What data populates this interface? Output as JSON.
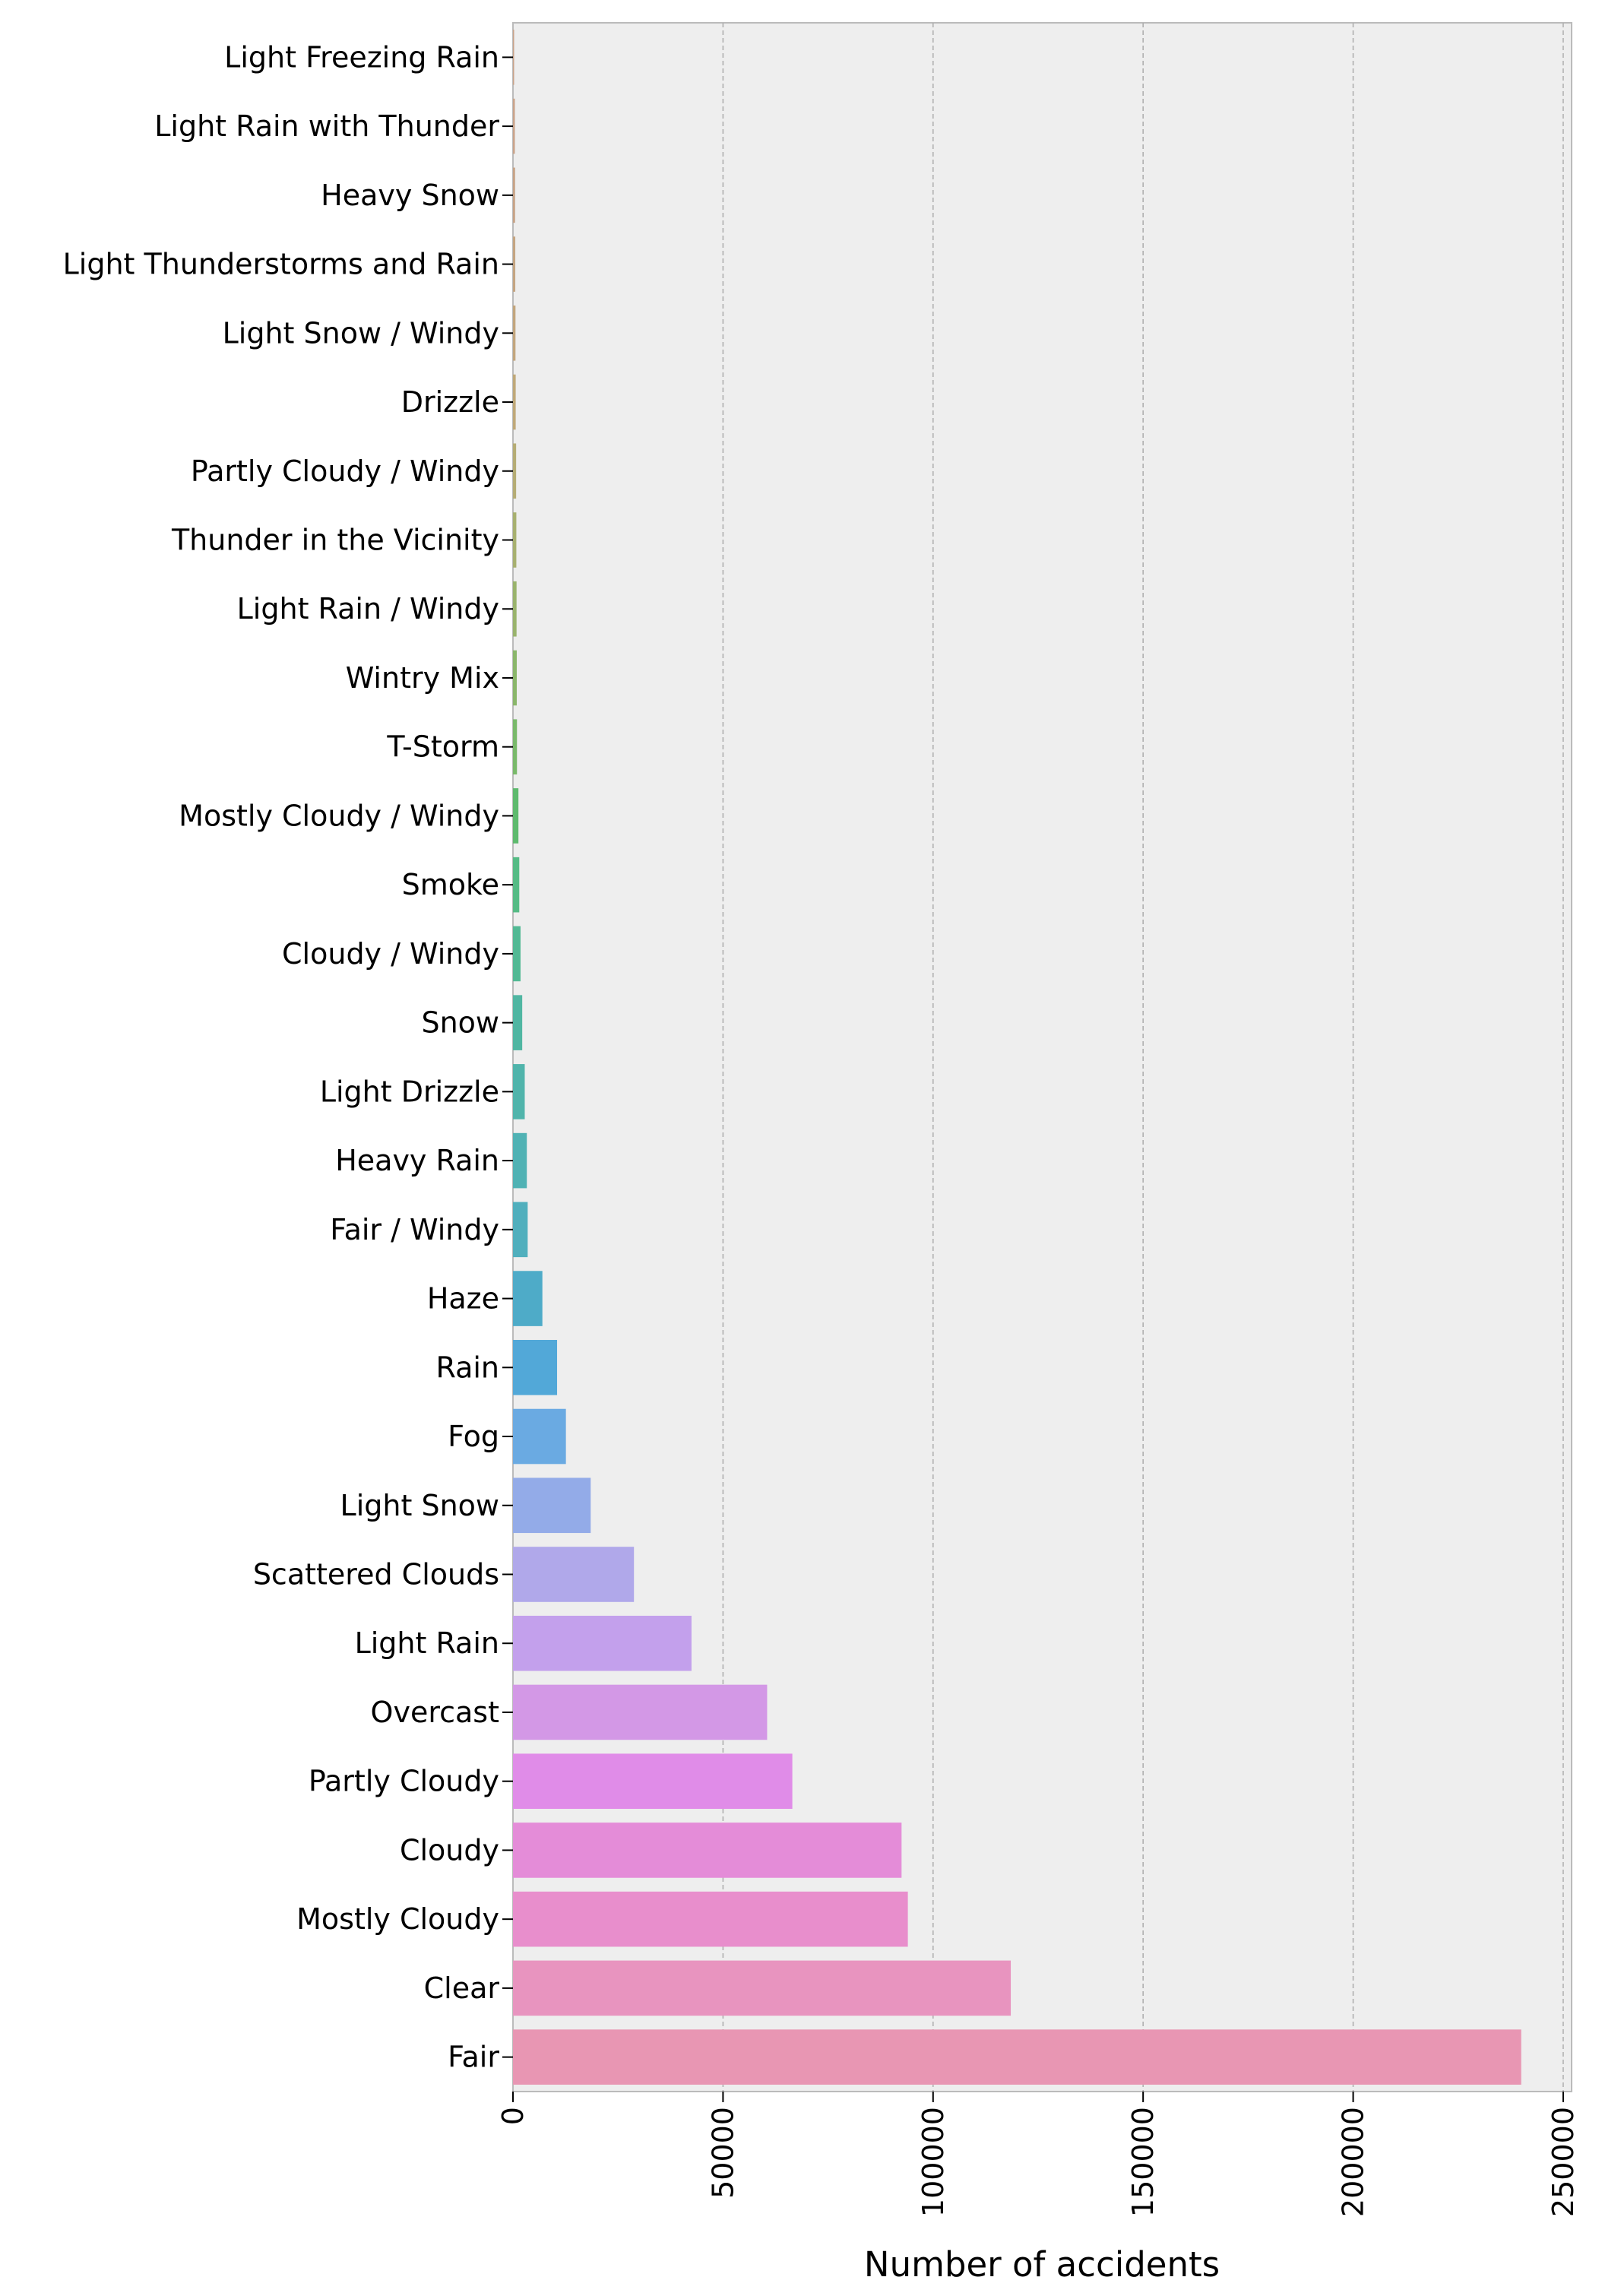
{
  "chart_data": {
    "type": "bar",
    "orientation": "horizontal",
    "xlabel": "Number of accidents",
    "ylabel": "",
    "xlim": [
      0,
      252000
    ],
    "xticks": [
      0,
      50000,
      100000,
      150000,
      200000,
      250000
    ],
    "grid": "x-dashed",
    "background": "#eeeeee",
    "categories": [
      "Light Freezing Rain",
      "Light Rain with Thunder",
      "Heavy Snow",
      "Light Thunderstorms and Rain",
      "Light Snow / Windy",
      "Drizzle",
      "Partly Cloudy / Windy",
      "Thunder in the Vicinity",
      "Light Rain / Windy",
      "Wintry Mix",
      "T-Storm",
      "Mostly Cloudy / Windy",
      "Smoke",
      "Cloudy / Windy",
      "Snow",
      "Light Drizzle",
      "Heavy Rain",
      "Fair / Windy",
      "Haze",
      "Rain",
      "Fog",
      "Light Snow",
      "Scattered Clouds",
      "Light Rain",
      "Overcast",
      "Partly Cloudy",
      "Cloudy",
      "Mostly Cloudy",
      "Clear",
      "Fair"
    ],
    "values": [
      250,
      450,
      500,
      550,
      600,
      650,
      750,
      800,
      850,
      900,
      950,
      1300,
      1500,
      1800,
      2200,
      2800,
      3300,
      3500,
      7000,
      10500,
      12600,
      18500,
      28800,
      42500,
      60500,
      66500,
      92500,
      94000,
      118500,
      240000
    ],
    "colors": [
      "#c9a38a",
      "#c9a38a",
      "#c6a286",
      "#c4a482",
      "#c2a57d",
      "#bfa878",
      "#b5ac74",
      "#a7b06f",
      "#99b36c",
      "#8ab66a",
      "#79b96a",
      "#5eba6e",
      "#55bb85",
      "#52b994",
      "#50b6a2",
      "#50b4ab",
      "#50b2b4",
      "#50afbd",
      "#4eabc8",
      "#52a8d8",
      "#6aaae2",
      "#93abe8",
      "#b0a8ea",
      "#c3a0ec",
      "#d398e6",
      "#e08ce8",
      "#e48cd8",
      "#e88ecc",
      "#e894bf",
      "#e896b3"
    ]
  }
}
